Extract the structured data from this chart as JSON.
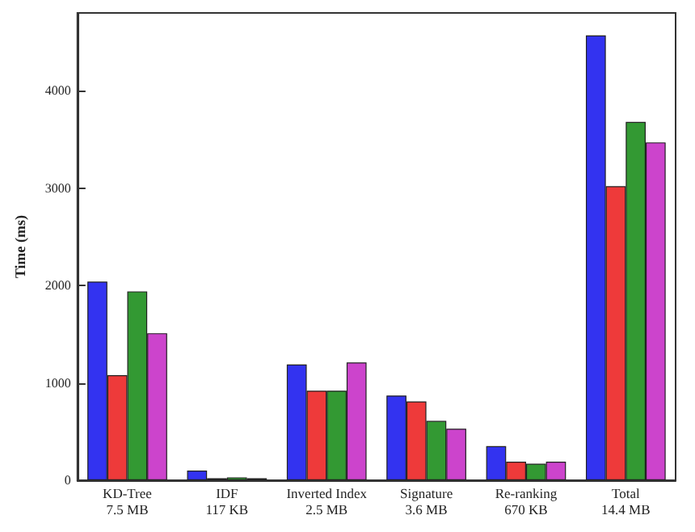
{
  "chart_data": {
    "type": "bar",
    "ylabel": "Time (ms)",
    "categories": [
      "KD-Tree\n7.5 MB",
      "IDF\n117 KB",
      "Inverted Index\n2.5 MB",
      "Signature\n3.6 MB",
      "Re-ranking\n670 KB",
      "Total\n14.4 MB"
    ],
    "series": [
      {
        "color": "#3333f0",
        "values": [
          2040,
          100,
          1190,
          870,
          350,
          4570
        ]
      },
      {
        "color": "#ee3a3a",
        "values": [
          1080,
          20,
          920,
          810,
          190,
          3020
        ]
      },
      {
        "color": "#339933",
        "values": [
          1940,
          30,
          920,
          610,
          170,
          3680
        ]
      },
      {
        "color": "#cc44cc",
        "values": [
          1510,
          20,
          1210,
          530,
          190,
          3470
        ]
      }
    ],
    "ylim": [
      0,
      4800
    ],
    "yticks": [
      0,
      1000,
      2000,
      3000,
      4000
    ],
    "grid": false,
    "legend": false
  }
}
